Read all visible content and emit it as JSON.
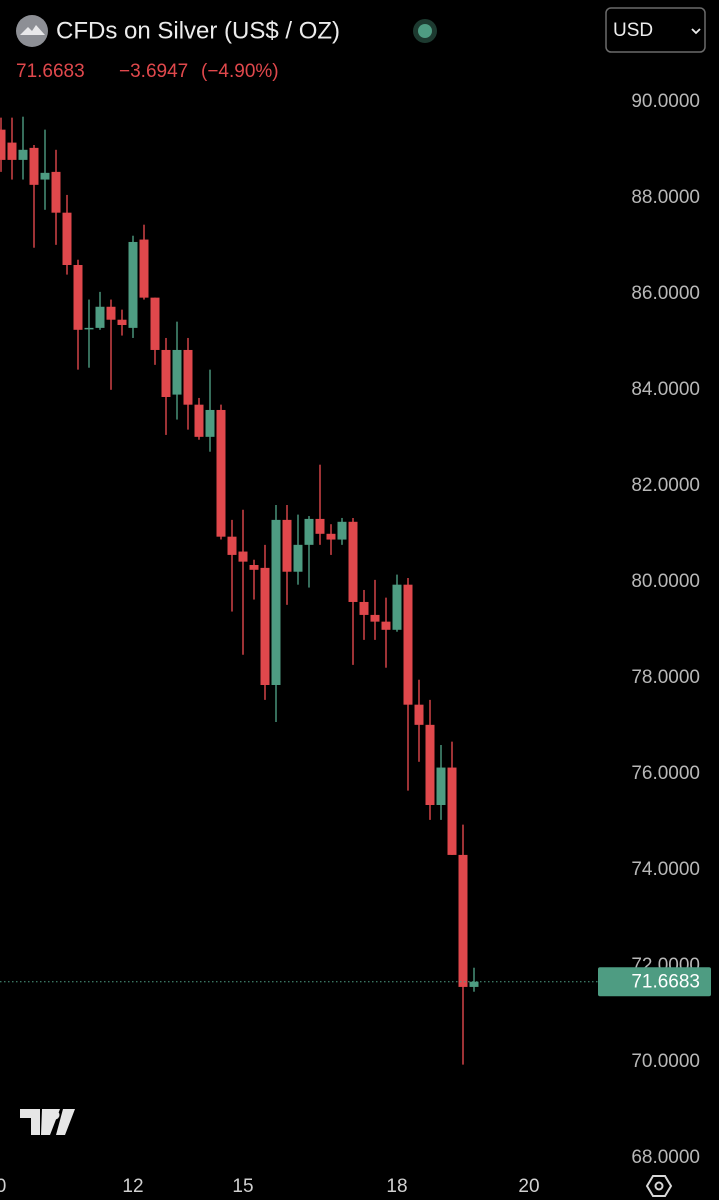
{
  "header": {
    "title": "CFDs on Silver (US$ / OZ)",
    "change": "−3.6947",
    "change_percent": "(−4.90%)",
    "currency": "USD"
  },
  "chart_data": {
    "type": "candlestick",
    "up_color": "#4e9c82",
    "down_color": "#e0484c",
    "ylim": [
      67.85,
      90.35
    ],
    "yticks": [
      {
        "value": 68,
        "label": "68.0000"
      },
      {
        "value": 70,
        "label": "70.0000"
      },
      {
        "value": 72,
        "label": "72.0000"
      },
      {
        "value": 74,
        "label": "74.0000"
      },
      {
        "value": 76,
        "label": "76.0000"
      },
      {
        "value": 78,
        "label": "78.0000"
      },
      {
        "value": 80,
        "label": "80.0000"
      },
      {
        "value": 82,
        "label": "82.0000"
      },
      {
        "value": 84,
        "label": "84.0000"
      },
      {
        "value": 86,
        "label": "86.0000"
      },
      {
        "value": 88,
        "label": "88.0000"
      },
      {
        "value": 90,
        "label": "90.0000"
      }
    ],
    "xticks": [
      {
        "value": 0,
        "label": "0"
      },
      {
        "value": 12,
        "label": "12"
      },
      {
        "value": 22,
        "label": "15"
      },
      {
        "value": 36,
        "label": "18"
      },
      {
        "value": 48,
        "label": "20"
      }
    ],
    "open": [
      89.42,
      89.15,
      88.79,
      89.04,
      88.38,
      88.54,
      87.69,
      86.6,
      85.27,
      85.29,
      85.73,
      85.46,
      85.29,
      87.13,
      85.92,
      84.83,
      83.9,
      84.83,
      83.69,
      83.02,
      83.58,
      80.94,
      80.63,
      80.35,
      80.29,
      77.85,
      81.29,
      80.21,
      80.77,
      81.31,
      81.0,
      80.88,
      81.25,
      79.58,
      79.31,
      79.17,
      79.0,
      79.94,
      77.44,
      77.02,
      75.35,
      76.13,
      74.31,
      71.56
    ],
    "high": [
      89.67,
      89.67,
      89.69,
      89.1,
      89.42,
      89.0,
      88.06,
      86.71,
      85.88,
      86.04,
      85.88,
      85.67,
      87.21,
      87.44,
      85.92,
      85.08,
      85.42,
      85.08,
      83.83,
      84.42,
      83.69,
      81.29,
      81.5,
      80.46,
      80.77,
      81.6,
      81.6,
      81.4,
      81.37,
      82.44,
      81.2,
      81.33,
      81.33,
      79.83,
      80.04,
      79.67,
      80.15,
      80.08,
      77.96,
      77.54,
      76.6,
      76.67,
      74.94,
      71.96
    ],
    "low": [
      88.54,
      88.38,
      88.38,
      86.96,
      87.75,
      87.02,
      86.4,
      84.42,
      84.46,
      85.25,
      84.0,
      85.13,
      85.08,
      85.88,
      84.52,
      83.06,
      83.38,
      83.17,
      82.96,
      82.71,
      80.88,
      79.38,
      78.48,
      79.63,
      77.54,
      77.08,
      79.52,
      79.94,
      79.88,
      80.77,
      80.56,
      80.77,
      78.27,
      78.79,
      78.79,
      78.21,
      78.96,
      75.65,
      76.25,
      75.04,
      75.04,
      74.31,
      69.94,
      71.46
    ],
    "close": [
      88.79,
      88.79,
      89.0,
      88.27,
      88.52,
      87.69,
      86.6,
      85.25,
      85.29,
      85.73,
      85.46,
      85.35,
      87.08,
      85.92,
      84.83,
      83.85,
      84.83,
      83.69,
      83.02,
      83.58,
      80.94,
      80.56,
      80.42,
      80.25,
      77.85,
      81.29,
      80.21,
      80.77,
      81.31,
      81.0,
      80.88,
      81.25,
      79.58,
      79.31,
      79.17,
      79.0,
      79.94,
      77.44,
      77.02,
      75.35,
      76.13,
      74.31,
      71.56,
      71.6683
    ]
  }
}
